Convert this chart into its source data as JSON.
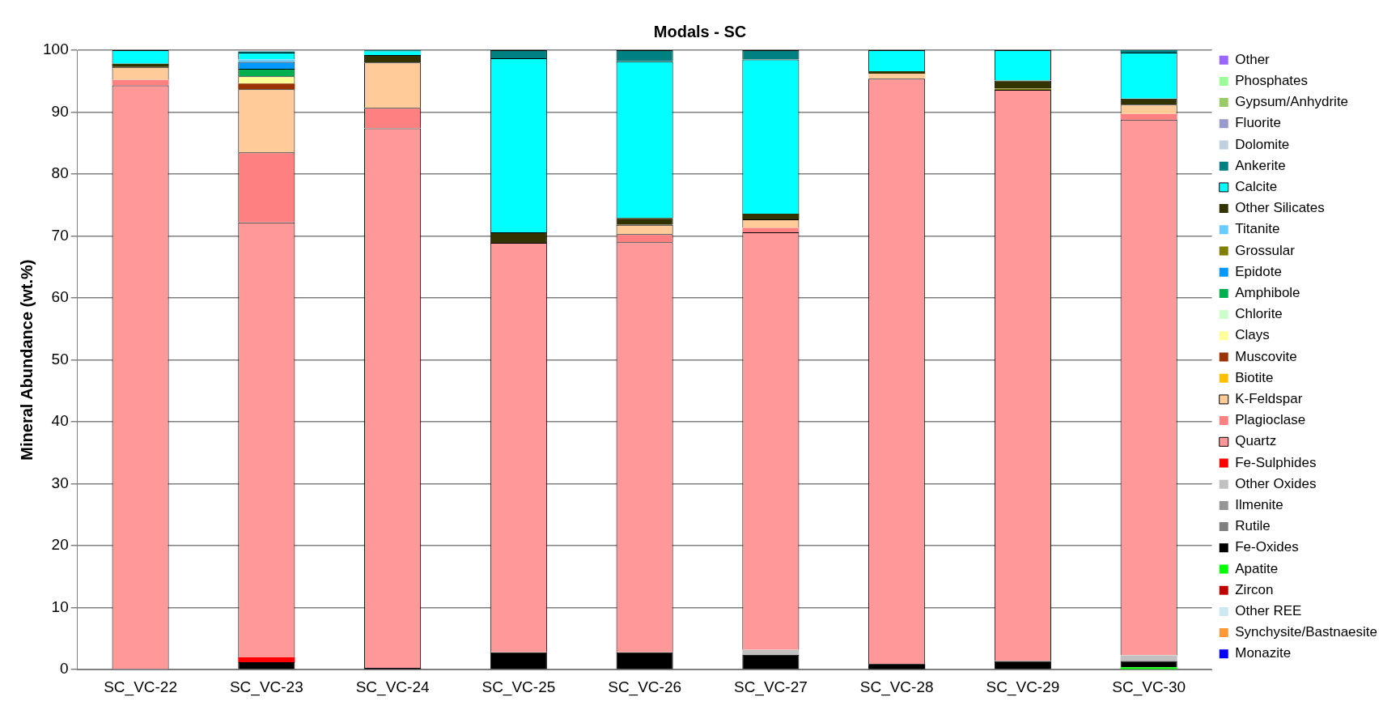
{
  "chart_data": {
    "type": "bar",
    "stacked": true,
    "title": "Modals - SC",
    "ylabel": "Mineral Abundance (wt.%)",
    "categories": [
      "SC_VC-22",
      "SC_VC-23",
      "SC_VC-24",
      "SC_VC-25",
      "SC_VC-26",
      "SC_VC-27",
      "SC_VC-28",
      "SC_VC-29",
      "SC_VC-30"
    ],
    "ylim": [
      0,
      100
    ],
    "yticks": [
      0,
      10,
      20,
      30,
      40,
      50,
      60,
      70,
      80,
      90,
      100
    ],
    "grid": "y",
    "legend": "right",
    "series": [
      {
        "name": "Monazite",
        "color": "#0000ff",
        "values": [
          0,
          0,
          0,
          0,
          0,
          0,
          0,
          0,
          0
        ]
      },
      {
        "name": "Synchysite/Bastnaesite",
        "color": "#ff9933",
        "values": [
          0,
          0,
          0,
          0,
          0,
          0,
          0,
          0,
          0
        ]
      },
      {
        "name": "Other REE",
        "color": "#cce8f0",
        "values": [
          0,
          0,
          0,
          0,
          0,
          0,
          0,
          0,
          0
        ]
      },
      {
        "name": "Zircon",
        "color": "#c00000",
        "values": [
          0,
          0,
          0,
          0,
          0,
          0,
          0,
          0,
          0
        ]
      },
      {
        "name": "Apatite",
        "color": "#00ff00",
        "values": [
          0,
          0,
          0,
          0,
          0,
          0,
          0,
          0,
          0.4
        ]
      },
      {
        "name": "Fe-Oxides",
        "color": "#000000",
        "values": [
          0,
          1.2,
          0.3,
          2.8,
          2.8,
          2.4,
          0.9,
          1.4,
          1.0
        ]
      },
      {
        "name": "Rutile",
        "color": "#808080",
        "values": [
          0,
          0,
          0,
          0,
          0,
          0,
          0,
          0,
          0
        ]
      },
      {
        "name": "Ilmenite",
        "color": "#969696",
        "values": [
          0,
          0,
          0,
          0,
          0,
          0,
          0,
          0,
          0
        ]
      },
      {
        "name": "Other Oxides",
        "color": "#c0c0c0",
        "values": [
          0,
          0,
          0,
          0,
          0,
          0.8,
          0,
          0,
          0.9
        ]
      },
      {
        "name": "Fe-Sulphides",
        "color": "#ff0000",
        "values": [
          0,
          0.8,
          0,
          0,
          0,
          0,
          0,
          0,
          0
        ]
      },
      {
        "name": "Quartz",
        "color": "#ff9999",
        "values": [
          94.3,
          70.2,
          87.1,
          66.1,
          66.2,
          67.4,
          94.5,
          92.2,
          86.5
        ]
      },
      {
        "name": "Plagioclase",
        "color": "#ff8080",
        "values": [
          0.9,
          11.3,
          3.3,
          0,
          1.3,
          0.7,
          0,
          0,
          0.9
        ]
      },
      {
        "name": "K-Feldspar",
        "color": "#ffcc99",
        "values": [
          2.1,
          10.2,
          7.3,
          0,
          1.5,
          1.4,
          0.8,
          0,
          1.5
        ]
      },
      {
        "name": "Biotite",
        "color": "#ffc000",
        "values": [
          0,
          0,
          0,
          0,
          0,
          0,
          0,
          0,
          0
        ]
      },
      {
        "name": "Muscovite",
        "color": "#993300",
        "values": [
          0,
          0.9,
          0,
          0,
          0,
          0,
          0,
          0,
          0
        ]
      },
      {
        "name": "Clays",
        "color": "#ffff99",
        "values": [
          0,
          1.2,
          0,
          0,
          0,
          0,
          0,
          0,
          0
        ]
      },
      {
        "name": "Chlorite",
        "color": "#ccffcc",
        "values": [
          0,
          0,
          0,
          0,
          0,
          0,
          0,
          0,
          0
        ]
      },
      {
        "name": "Amphibole",
        "color": "#00b050",
        "values": [
          0,
          1.2,
          0,
          0,
          0,
          0,
          0,
          0,
          0
        ]
      },
      {
        "name": "Epidote",
        "color": "#0099ff",
        "values": [
          0,
          1.1,
          0,
          0,
          0,
          0,
          0,
          0,
          0
        ]
      },
      {
        "name": "Grossular",
        "color": "#808000",
        "values": [
          0,
          0,
          0,
          0,
          0,
          0,
          0,
          0.2,
          0
        ]
      },
      {
        "name": "Titanite",
        "color": "#66ccff",
        "values": [
          0,
          0.4,
          0,
          0,
          0,
          0,
          0,
          0,
          0
        ]
      },
      {
        "name": "Other Silicates",
        "color": "#333300",
        "values": [
          0.5,
          0,
          1.2,
          1.7,
          1.1,
          0.9,
          0.4,
          1.3,
          1.0
        ]
      },
      {
        "name": "Calcite",
        "color": "#00ffff",
        "values": [
          2.2,
          1.1,
          0.6,
          28.1,
          25.3,
          24.9,
          3.4,
          4.9,
          7.4
        ]
      },
      {
        "name": "Ankerite",
        "color": "#008080",
        "values": [
          0,
          0.2,
          0.2,
          1.3,
          1.8,
          1.5,
          0,
          0,
          0.4
        ]
      },
      {
        "name": "Dolomite",
        "color": "#c0d0e0",
        "values": [
          0,
          0,
          0,
          0,
          0,
          0,
          0,
          0,
          0
        ]
      },
      {
        "name": "Fluorite",
        "color": "#9999cc",
        "values": [
          0,
          0,
          0,
          0,
          0,
          0,
          0,
          0,
          0
        ]
      },
      {
        "name": "Gypsum/Anhydrite",
        "color": "#99cc66",
        "values": [
          0,
          0,
          0,
          0,
          0,
          0,
          0,
          0,
          0
        ]
      },
      {
        "name": "Phosphates",
        "color": "#99ff99",
        "values": [
          0,
          0,
          0,
          0,
          0,
          0,
          0,
          0,
          0
        ]
      },
      {
        "name": "Other",
        "color": "#9966ff",
        "values": [
          0,
          0,
          0,
          0,
          0,
          0,
          0,
          0,
          0
        ]
      }
    ]
  }
}
